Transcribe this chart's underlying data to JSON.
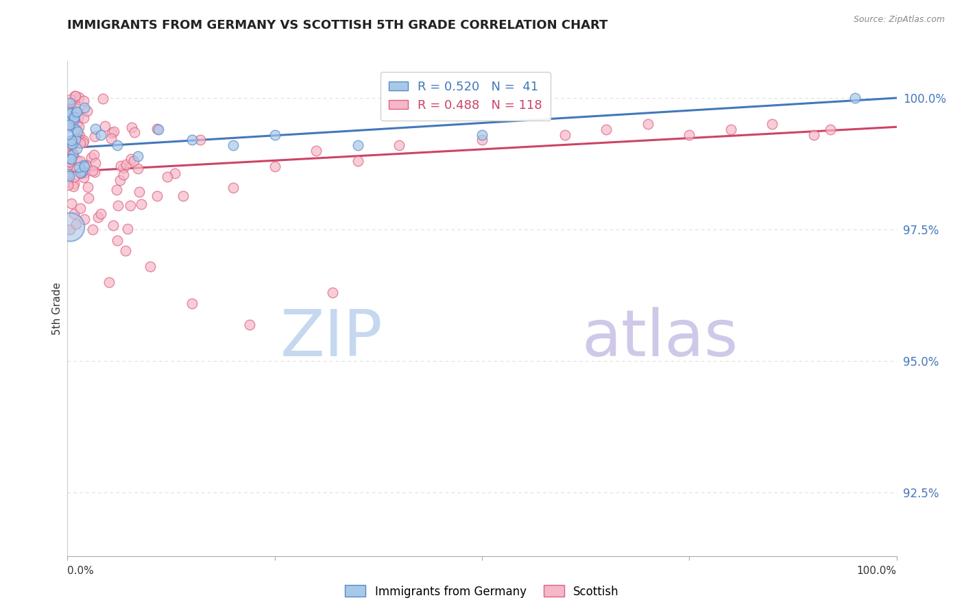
{
  "title": "IMMIGRANTS FROM GERMANY VS SCOTTISH 5TH GRADE CORRELATION CHART",
  "source": "Source: ZipAtlas.com",
  "ylabel": "5th Grade",
  "y_ticks": [
    92.5,
    95.0,
    97.5,
    100.0
  ],
  "x_range": [
    0.0,
    1.0
  ],
  "y_range": [
    91.3,
    100.7
  ],
  "legend1_label": "Immigrants from Germany",
  "legend2_label": "Scottish",
  "r_blue": 0.52,
  "n_blue": 41,
  "r_pink": 0.488,
  "n_pink": 118,
  "blue_color": "#a8c8e8",
  "pink_color": "#f4b8c8",
  "blue_edge": "#5588cc",
  "pink_edge": "#e06080",
  "trendline_blue": "#4477bb",
  "trendline_pink": "#cc4466",
  "watermark_zip_color": "#c8d8f0",
  "watermark_atlas_color": "#d8c8e8",
  "background_color": "#ffffff",
  "grid_color": "#dddddd",
  "title_color": "#222222",
  "source_color": "#888888",
  "ytick_color": "#4477bb",
  "xtick_color": "#333333"
}
